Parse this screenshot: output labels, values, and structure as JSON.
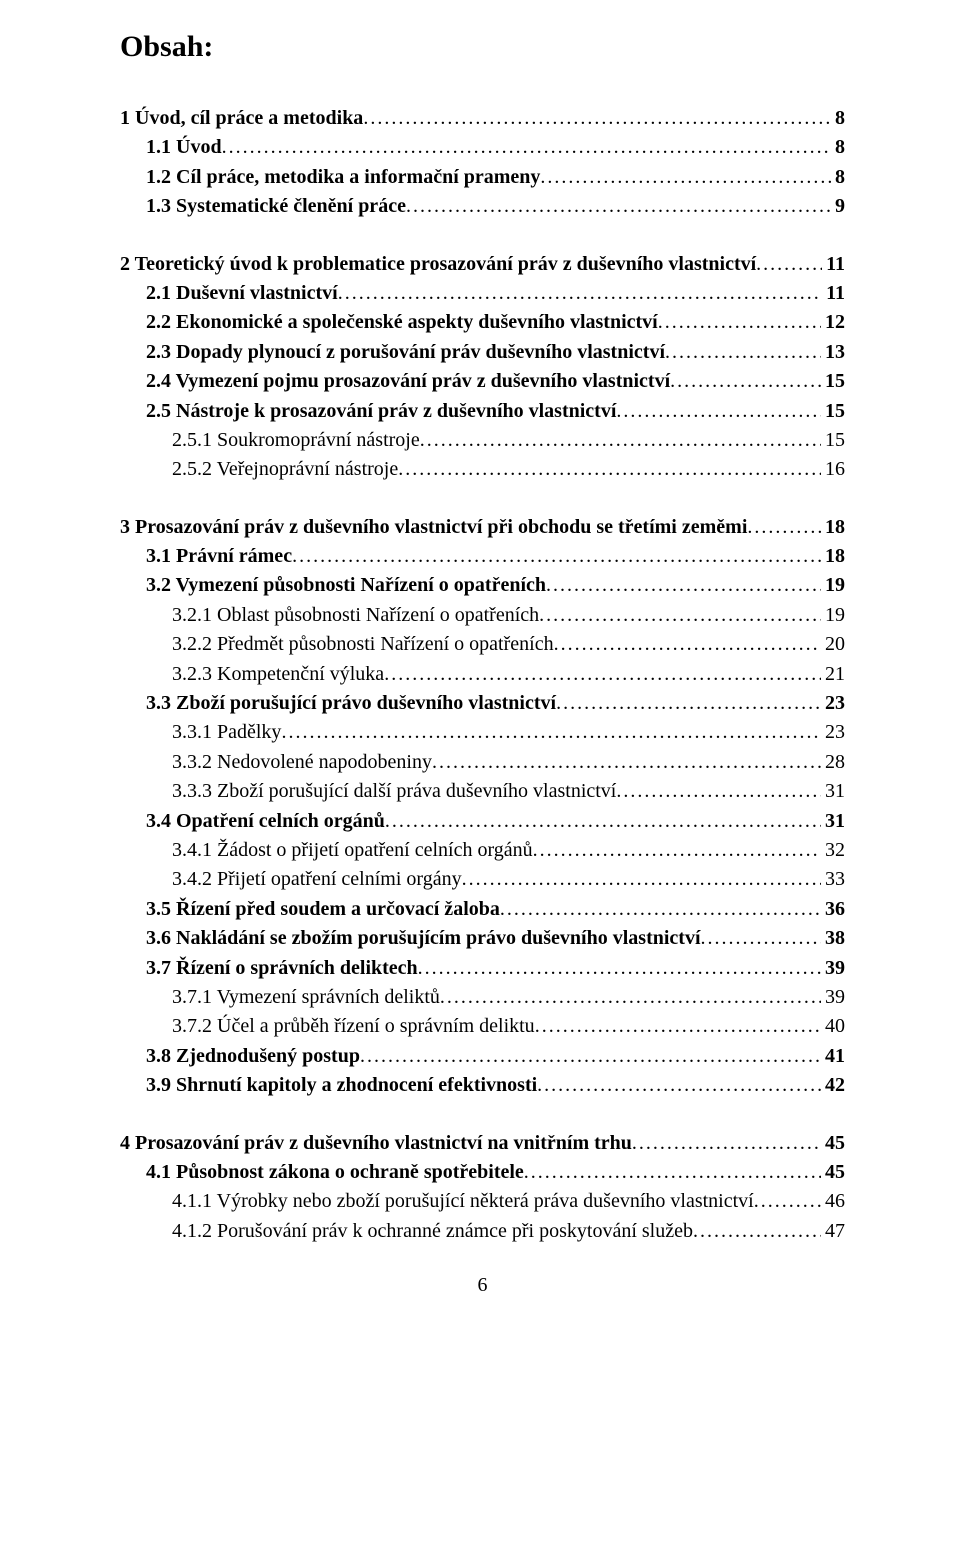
{
  "title": "Obsah:",
  "pageNumber": "6",
  "toc": [
    {
      "indent": 0,
      "bold": true,
      "label": "1  Úvod, cíl práce a metodika",
      "page": "8",
      "gapBefore": false
    },
    {
      "indent": 1,
      "bold": true,
      "label": "1.1  Úvod",
      "page": "8",
      "gapBefore": false
    },
    {
      "indent": 1,
      "bold": true,
      "label": "1.2  Cíl práce, metodika a informační prameny",
      "page": "8",
      "gapBefore": false
    },
    {
      "indent": 1,
      "bold": true,
      "label": "1.3  Systematické členění práce",
      "page": "9",
      "gapBefore": false
    },
    {
      "indent": 0,
      "bold": true,
      "label": "2  Teoretický úvod k problematice prosazování práv z duševního vlastnictví",
      "page": "11",
      "gapBefore": true
    },
    {
      "indent": 1,
      "bold": true,
      "label": "2.1  Duševní vlastnictví",
      "page": "11",
      "gapBefore": false
    },
    {
      "indent": 1,
      "bold": true,
      "label": "2.2  Ekonomické a společenské aspekty duševního vlastnictví",
      "page": "12",
      "gapBefore": false
    },
    {
      "indent": 1,
      "bold": true,
      "label": "2.3  Dopady plynoucí z porušování práv duševního vlastnictví",
      "page": "13",
      "gapBefore": false
    },
    {
      "indent": 1,
      "bold": true,
      "label": "2.4  Vymezení pojmu prosazování práv z duševního vlastnictví",
      "page": "15",
      "gapBefore": false
    },
    {
      "indent": 1,
      "bold": true,
      "label": "2.5  Nástroje k prosazování práv z duševního vlastnictví",
      "page": "15",
      "gapBefore": false
    },
    {
      "indent": 2,
      "bold": false,
      "label": "2.5.1  Soukromoprávní nástroje",
      "page": "15",
      "gapBefore": false
    },
    {
      "indent": 2,
      "bold": false,
      "label": "2.5.2  Veřejnoprávní nástroje",
      "page": "16",
      "gapBefore": false
    },
    {
      "indent": 0,
      "bold": true,
      "label": "3  Prosazování práv z duševního vlastnictví při obchodu se třetími zeměmi",
      "page": "18",
      "gapBefore": true
    },
    {
      "indent": 1,
      "bold": true,
      "label": "3.1  Právní rámec",
      "page": "18",
      "gapBefore": false
    },
    {
      "indent": 1,
      "bold": true,
      "label": "3.2  Vymezení působnosti Nařízení o opatřeních",
      "page": "19",
      "gapBefore": false
    },
    {
      "indent": 2,
      "bold": false,
      "label": "3.2.1  Oblast působnosti Nařízení o opatřeních",
      "page": "19",
      "gapBefore": false
    },
    {
      "indent": 2,
      "bold": false,
      "label": "3.2.2  Předmět působnosti Nařízení o opatřeních",
      "page": "20",
      "gapBefore": false
    },
    {
      "indent": 2,
      "bold": false,
      "label": "3.2.3  Kompetenční výluka",
      "page": "21",
      "gapBefore": false
    },
    {
      "indent": 1,
      "bold": true,
      "label": "3.3  Zboží porušující právo duševního vlastnictví",
      "page": "23",
      "gapBefore": false
    },
    {
      "indent": 2,
      "bold": false,
      "label": "3.3.1  Padělky",
      "page": "23",
      "gapBefore": false
    },
    {
      "indent": 2,
      "bold": false,
      "label": "3.3.2  Nedovolené napodobeniny",
      "page": "28",
      "gapBefore": false
    },
    {
      "indent": 2,
      "bold": false,
      "label": "3.3.3  Zboží porušující další práva duševního vlastnictví",
      "page": "31",
      "gapBefore": false
    },
    {
      "indent": 1,
      "bold": true,
      "label": "3.4  Opatření celních orgánů",
      "page": "31",
      "gapBefore": false
    },
    {
      "indent": 2,
      "bold": false,
      "label": "3.4.1  Žádost o přijetí opatření celních orgánů",
      "page": "32",
      "gapBefore": false
    },
    {
      "indent": 2,
      "bold": false,
      "label": "3.4.2  Přijetí opatření celními orgány",
      "page": "33",
      "gapBefore": false
    },
    {
      "indent": 1,
      "bold": true,
      "label": "3.5  Řízení před soudem a určovací žaloba",
      "page": "36",
      "gapBefore": false
    },
    {
      "indent": 1,
      "bold": true,
      "label": "3.6  Nakládání se zbožím porušujícím právo duševního vlastnictví",
      "page": "38",
      "gapBefore": false
    },
    {
      "indent": 1,
      "bold": true,
      "label": "3.7  Řízení o správních deliktech",
      "page": "39",
      "gapBefore": false
    },
    {
      "indent": 2,
      "bold": false,
      "label": "3.7.1  Vymezení správních deliktů",
      "page": "39",
      "gapBefore": false
    },
    {
      "indent": 2,
      "bold": false,
      "label": "3.7.2  Účel a průběh řízení o správním deliktu",
      "page": "40",
      "gapBefore": false
    },
    {
      "indent": 1,
      "bold": true,
      "label": "3.8  Zjednodušený postup",
      "page": "41",
      "gapBefore": false
    },
    {
      "indent": 1,
      "bold": true,
      "label": "3.9  Shrnutí kapitoly a zhodnocení efektivnosti",
      "page": "42",
      "gapBefore": false
    },
    {
      "indent": 0,
      "bold": true,
      "label": "4  Prosazování práv z duševního vlastnictví na vnitřním trhu",
      "page": "45",
      "gapBefore": true
    },
    {
      "indent": 1,
      "bold": true,
      "label": "4.1  Působnost zákona o ochraně spotřebitele",
      "page": "45",
      "gapBefore": false
    },
    {
      "indent": 2,
      "bold": false,
      "label": "4.1.1  Výrobky nebo zboží porušující některá práva duševního vlastnictví",
      "page": "46",
      "gapBefore": false
    },
    {
      "indent": 2,
      "bold": false,
      "label": "4.1.2  Porušování práv k ochranné známce při poskytování služeb",
      "page": "47",
      "gapBefore": false
    }
  ]
}
